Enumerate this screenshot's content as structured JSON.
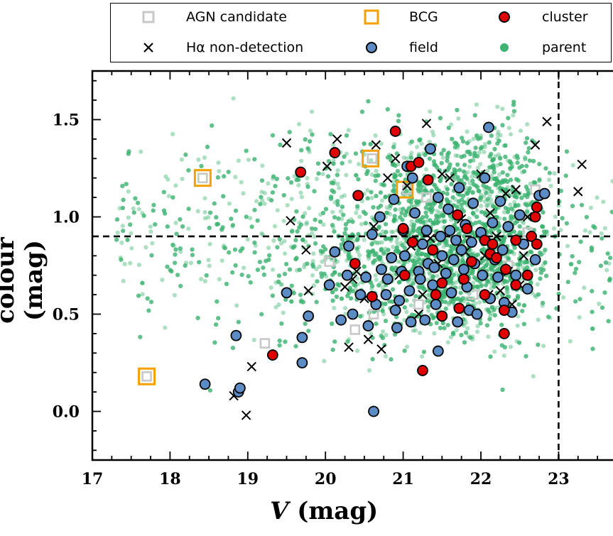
{
  "chart_data": {
    "type": "scatter",
    "xlabel": "V (mag)",
    "xlabel_var": "V",
    "xlabel_unit": "(mag)",
    "ylabel": "colour (mag)",
    "xlim": [
      17.0,
      23.7
    ],
    "ylim": [
      -0.25,
      1.75
    ],
    "x_ticks": [
      "17",
      "18",
      "19",
      "20",
      "21",
      "22",
      "23"
    ],
    "x_tick_values": [
      17,
      18,
      19,
      20,
      21,
      22,
      23
    ],
    "y_ticks": [
      "0.0",
      "0.5",
      "1.0",
      "1.5"
    ],
    "y_tick_values": [
      0.0,
      0.5,
      1.0,
      1.5
    ],
    "reference_lines": {
      "vertical_x": 23.0,
      "horizontal_y": 0.9
    },
    "legend_placement": "top",
    "legend": [
      {
        "label": "AGN candidate",
        "marker": "open-square",
        "color": "#c8c8c8"
      },
      {
        "label": "BCG",
        "marker": "open-square",
        "color": "#f5a000"
      },
      {
        "label": "cluster",
        "marker": "circle",
        "color": "#e00000"
      },
      {
        "label": "Hα non-detection",
        "marker": "cross",
        "color": "#000000"
      },
      {
        "label": "field",
        "marker": "circle",
        "color": "#5b8cc5"
      },
      {
        "label": "parent",
        "marker": "dot",
        "color": "#3cb371"
      }
    ],
    "series": [
      {
        "name": "parent",
        "color": "#3cb371",
        "distribution": "dense cloud",
        "x_range": [
          17.2,
          23.7
        ],
        "y_range": [
          0.0,
          1.6
        ],
        "density_peak": [
          [
            21.8,
            0.75
          ],
          [
            21.5,
            1.05
          ]
        ]
      },
      {
        "name": "BCG",
        "color": "#f5a000",
        "points": [
          [
            17.7,
            0.18
          ],
          [
            18.42,
            1.2
          ],
          [
            20.58,
            1.3
          ],
          [
            21.02,
            1.14
          ]
        ]
      },
      {
        "name": "AGN candidate",
        "color": "#c8c8c8",
        "points": [
          [
            17.7,
            0.18
          ],
          [
            18.42,
            1.2
          ],
          [
            19.22,
            0.35
          ],
          [
            20.05,
            0.77
          ],
          [
            20.38,
            0.42
          ],
          [
            20.6,
            1.3
          ],
          [
            20.62,
            0.5
          ],
          [
            21.05,
            1.14
          ],
          [
            21.2,
            0.55
          ],
          [
            21.3,
            1.1
          ],
          [
            21.9,
            0.6
          ],
          [
            22.35,
            0.75
          ],
          [
            22.6,
            0.92
          ],
          [
            22.7,
            1.14
          ]
        ]
      },
      {
        "name": "cluster",
        "color": "#e00000",
        "points": [
          [
            19.32,
            0.29
          ],
          [
            19.68,
            1.23
          ],
          [
            20.12,
            1.33
          ],
          [
            20.38,
            0.76
          ],
          [
            20.42,
            1.11
          ],
          [
            20.6,
            0.59
          ],
          [
            20.9,
            1.44
          ],
          [
            21.0,
            0.94
          ],
          [
            21.02,
            0.7
          ],
          [
            21.1,
            1.26
          ],
          [
            21.12,
            0.87
          ],
          [
            21.2,
            1.28
          ],
          [
            21.25,
            0.21
          ],
          [
            21.32,
            1.19
          ],
          [
            21.38,
            0.83
          ],
          [
            21.42,
            0.6
          ],
          [
            21.5,
            0.49
          ],
          [
            21.5,
            0.66
          ],
          [
            21.7,
            1.01
          ],
          [
            21.72,
            0.53
          ],
          [
            21.78,
            0.68
          ],
          [
            21.82,
            0.94
          ],
          [
            21.88,
            0.77
          ],
          [
            22.05,
            0.88
          ],
          [
            22.05,
            0.6
          ],
          [
            22.12,
            0.81
          ],
          [
            22.15,
            0.86
          ],
          [
            22.2,
            0.79
          ],
          [
            22.3,
            0.52
          ],
          [
            22.32,
            0.73
          ],
          [
            22.3,
            0.4
          ],
          [
            22.45,
            0.65
          ],
          [
            22.45,
            0.88
          ],
          [
            22.6,
            0.7
          ],
          [
            22.65,
            0.9
          ],
          [
            22.7,
            1.0
          ],
          [
            22.72,
            1.05
          ],
          [
            22.72,
            0.86
          ]
        ]
      },
      {
        "name": "field",
        "color": "#5b8cc5",
        "points": [
          [
            18.45,
            0.14
          ],
          [
            18.85,
            0.39
          ],
          [
            18.88,
            0.1
          ],
          [
            18.9,
            0.12
          ],
          [
            19.5,
            0.61
          ],
          [
            19.7,
            0.25
          ],
          [
            19.7,
            0.38
          ],
          [
            19.78,
            0.49
          ],
          [
            20.05,
            0.65
          ],
          [
            20.12,
            0.82
          ],
          [
            20.2,
            0.47
          ],
          [
            20.28,
            0.7
          ],
          [
            20.3,
            0.85
          ],
          [
            20.35,
            0.5
          ],
          [
            20.45,
            0.6
          ],
          [
            20.52,
            0.69
          ],
          [
            20.55,
            0.44
          ],
          [
            20.6,
            0.91
          ],
          [
            20.62,
            0.0
          ],
          [
            20.65,
            0.55
          ],
          [
            20.7,
            1.0
          ],
          [
            20.72,
            0.73
          ],
          [
            20.78,
            0.6
          ],
          [
            20.8,
            0.68
          ],
          [
            20.85,
            0.79
          ],
          [
            20.88,
            1.09
          ],
          [
            20.9,
            0.52
          ],
          [
            20.92,
            0.43
          ],
          [
            20.95,
            0.57
          ],
          [
            20.98,
            0.72
          ],
          [
            21.0,
            0.93
          ],
          [
            21.02,
            0.8
          ],
          [
            21.05,
            1.26
          ],
          [
            21.08,
            0.62
          ],
          [
            21.1,
            0.46
          ],
          [
            21.12,
            1.2
          ],
          [
            21.15,
            1.02
          ],
          [
            21.2,
            0.72
          ],
          [
            21.22,
            0.68
          ],
          [
            21.25,
            0.86
          ],
          [
            21.28,
            0.47
          ],
          [
            21.3,
            0.93
          ],
          [
            21.32,
            0.76
          ],
          [
            21.35,
            1.35
          ],
          [
            21.38,
            0.65
          ],
          [
            21.4,
            0.74
          ],
          [
            21.42,
            0.55
          ],
          [
            21.45,
            1.1
          ],
          [
            21.45,
            0.31
          ],
          [
            21.48,
            0.9
          ],
          [
            21.5,
            0.8
          ],
          [
            21.55,
            0.71
          ],
          [
            21.58,
            1.04
          ],
          [
            21.6,
            0.93
          ],
          [
            21.62,
            0.61
          ],
          [
            21.65,
            0.78
          ],
          [
            21.68,
            0.88
          ],
          [
            21.7,
            0.46
          ],
          [
            21.72,
            1.15
          ],
          [
            21.75,
            0.83
          ],
          [
            21.78,
            0.73
          ],
          [
            21.8,
            0.96
          ],
          [
            21.82,
            0.64
          ],
          [
            21.85,
            0.52
          ],
          [
            21.88,
            0.87
          ],
          [
            21.9,
            1.07
          ],
          [
            21.92,
            0.76
          ],
          [
            21.95,
            0.5
          ],
          [
            22.0,
            0.92
          ],
          [
            22.02,
            0.7
          ],
          [
            22.05,
            1.2
          ],
          [
            22.1,
            1.46
          ],
          [
            22.12,
            0.58
          ],
          [
            22.15,
            0.97
          ],
          [
            22.18,
            0.78
          ],
          [
            22.22,
            0.69
          ],
          [
            22.25,
            1.08
          ],
          [
            22.28,
            0.83
          ],
          [
            22.3,
            0.56
          ],
          [
            22.35,
            0.95
          ],
          [
            22.4,
            0.51
          ],
          [
            22.45,
            0.7
          ],
          [
            22.5,
            1.01
          ],
          [
            22.55,
            0.86
          ],
          [
            22.6,
            0.63
          ],
          [
            22.7,
            0.78
          ],
          [
            22.75,
            1.11
          ],
          [
            22.82,
            1.12
          ]
        ]
      },
      {
        "name": "Hα non-detection",
        "color": "#000000",
        "points": [
          [
            18.82,
            0.08
          ],
          [
            18.98,
            -0.02
          ],
          [
            19.05,
            0.23
          ],
          [
            19.5,
            1.38
          ],
          [
            19.55,
            0.98
          ],
          [
            19.75,
            0.83
          ],
          [
            19.78,
            0.62
          ],
          [
            20.02,
            1.26
          ],
          [
            20.15,
            1.4
          ],
          [
            20.25,
            0.64
          ],
          [
            20.3,
            0.33
          ],
          [
            20.35,
            0.68
          ],
          [
            20.4,
            0.72
          ],
          [
            20.5,
            0.58
          ],
          [
            20.55,
            0.37
          ],
          [
            20.62,
            0.95
          ],
          [
            20.65,
            1.37
          ],
          [
            20.72,
            0.32
          ],
          [
            20.8,
            1.2
          ],
          [
            20.9,
            1.3
          ],
          [
            20.95,
            0.7
          ],
          [
            21.05,
            1.16
          ],
          [
            21.1,
            0.85
          ],
          [
            21.2,
            0.5
          ],
          [
            21.25,
            0.6
          ],
          [
            21.3,
            1.48
          ],
          [
            21.35,
            0.89
          ],
          [
            21.45,
            0.76
          ],
          [
            21.5,
            1.22
          ],
          [
            21.6,
            1.2
          ],
          [
            21.75,
            0.99
          ],
          [
            21.8,
            0.82
          ],
          [
            22.0,
            1.22
          ],
          [
            22.05,
            0.8
          ],
          [
            22.1,
            0.6
          ],
          [
            22.12,
            1.02
          ],
          [
            22.2,
            0.9
          ],
          [
            22.25,
            0.62
          ],
          [
            22.32,
            1.12
          ],
          [
            22.35,
            0.72
          ],
          [
            22.4,
            0.55
          ],
          [
            22.45,
            1.14
          ],
          [
            22.5,
            0.65
          ],
          [
            22.55,
            0.8
          ],
          [
            22.6,
            1.0
          ],
          [
            22.7,
            1.37
          ],
          [
            22.85,
            1.49
          ],
          [
            23.25,
            1.13
          ],
          [
            23.3,
            1.27
          ]
        ]
      }
    ]
  }
}
